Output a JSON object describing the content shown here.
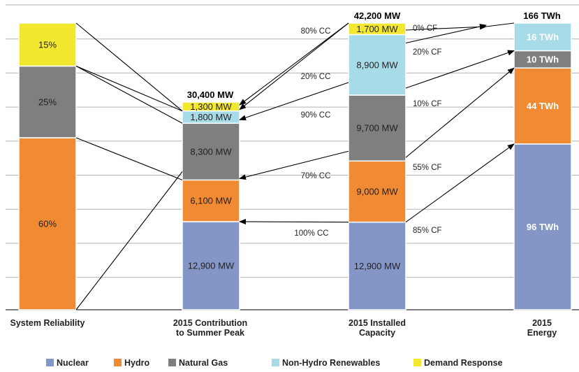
{
  "chart_data": {
    "type": "bar",
    "stacked": true,
    "categories": [
      "System Reliability",
      "2015 Contribution\nto Summer Peak",
      "2015 Installed\nCapacity",
      "2015\nEnergy"
    ],
    "series": [
      {
        "name": "Nuclear",
        "color": "#8496c6",
        "values": [
          0,
          12900,
          12900,
          96
        ]
      },
      {
        "name": "Hydro",
        "color": "#f08a33",
        "values": [
          60,
          6100,
          9000,
          44
        ]
      },
      {
        "name": "Natural Gas",
        "color": "#7f7f7f",
        "values": [
          25,
          8300,
          9700,
          10
        ]
      },
      {
        "name": "Non-Hydro Renewables",
        "color": "#a7dbe8",
        "values": [
          0,
          1800,
          8900,
          16
        ]
      },
      {
        "name": "Demand Response",
        "color": "#f2e830",
        "values": [
          15,
          1300,
          1700,
          0
        ]
      }
    ],
    "units": [
      "%",
      "MW",
      "MW",
      "TWh"
    ],
    "segment_labels": [
      [
        null,
        "60%",
        "25%",
        null,
        "15%"
      ],
      [
        "12,900 MW",
        "6,100 MW",
        "8,300 MW",
        "1,800 MW",
        "1,300 MW"
      ],
      [
        "12,900 MW",
        "9,000 MW",
        "9,700 MW",
        "8,900 MW",
        "1,700 MW"
      ],
      [
        "96 TWh",
        "44 TWh",
        "10 TWh",
        "16 TWh",
        null
      ]
    ],
    "totals": [
      null,
      "30,400 MW",
      "42,200 MW",
      "166 TWh"
    ],
    "capacity_credits": [
      "80% CC",
      "20% CC",
      "90% CC",
      "70% CC",
      "100% CC"
    ],
    "capacity_factors": [
      "0% CF",
      "20% CF",
      "10% CF",
      "55% CF",
      "85% CF"
    ],
    "grid": true,
    "legend_position": "bottom"
  }
}
